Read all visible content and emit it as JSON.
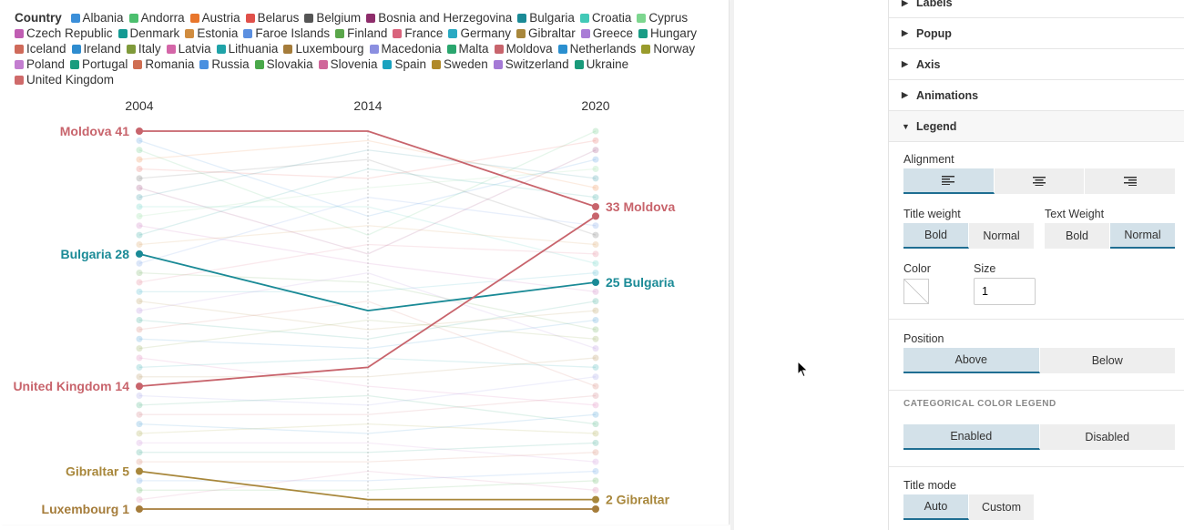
{
  "legend": {
    "title": "Country",
    "items": [
      {
        "name": "Albania",
        "color": "#3b8fd9"
      },
      {
        "name": "Andorra",
        "color": "#4cbf6e"
      },
      {
        "name": "Austria",
        "color": "#e8762c"
      },
      {
        "name": "Belarus",
        "color": "#e0504a"
      },
      {
        "name": "Belgium",
        "color": "#555555"
      },
      {
        "name": "Bosnia and Herzegovina",
        "color": "#8e2d6b"
      },
      {
        "name": "Bulgaria",
        "color": "#1a8a96"
      },
      {
        "name": "Croatia",
        "color": "#42c9b7"
      },
      {
        "name": "Cyprus",
        "color": "#7dd68f"
      },
      {
        "name": "Czech Republic",
        "color": "#c05eb3"
      },
      {
        "name": "Denmark",
        "color": "#149a93"
      },
      {
        "name": "Estonia",
        "color": "#d08c3f"
      },
      {
        "name": "Faroe Islands",
        "color": "#5b8fe0"
      },
      {
        "name": "Finland",
        "color": "#5aa64a"
      },
      {
        "name": "France",
        "color": "#d9637c"
      },
      {
        "name": "Germany",
        "color": "#29a9c2"
      },
      {
        "name": "Gibraltar",
        "color": "#a8873b"
      },
      {
        "name": "Greece",
        "color": "#a97dd6"
      },
      {
        "name": "Hungary",
        "color": "#199c85"
      },
      {
        "name": "Iceland",
        "color": "#cf6a5a"
      },
      {
        "name": "Ireland",
        "color": "#2e8ccf"
      },
      {
        "name": "Italy",
        "color": "#7f9a3a"
      },
      {
        "name": "Latvia",
        "color": "#d466a8"
      },
      {
        "name": "Lithuania",
        "color": "#1fa3a8"
      },
      {
        "name": "Luxembourg",
        "color": "#a57c3a"
      },
      {
        "name": "Macedonia",
        "color": "#8b8fe0"
      },
      {
        "name": "Malta",
        "color": "#2aa66e"
      },
      {
        "name": "Moldova",
        "color": "#c8646c"
      },
      {
        "name": "Netherlands",
        "color": "#2a8fcf"
      },
      {
        "name": "Norway",
        "color": "#999b2c"
      },
      {
        "name": "Poland",
        "color": "#c37ed0"
      },
      {
        "name": "Portugal",
        "color": "#1a9c7e"
      },
      {
        "name": "Romania",
        "color": "#cf6e52"
      },
      {
        "name": "Russia",
        "color": "#4a90e0"
      },
      {
        "name": "Slovakia",
        "color": "#4aa84a"
      },
      {
        "name": "Slovenia",
        "color": "#d0679a"
      },
      {
        "name": "Spain",
        "color": "#1aa2bf"
      },
      {
        "name": "Sweden",
        "color": "#b08a2a"
      },
      {
        "name": "Switzerland",
        "color": "#a57ad6"
      },
      {
        "name": "Ukraine",
        "color": "#1a9a7a"
      },
      {
        "name": "United Kingdom",
        "color": "#cf6a6a"
      }
    ]
  },
  "chart_data": {
    "type": "line",
    "subtype": "slope",
    "x": [
      "2004",
      "2014",
      "2020"
    ],
    "y_direction": "rank, higher values at top",
    "ylim": [
      0,
      42
    ],
    "highlighted_series": [
      {
        "name": "Moldova",
        "color": "#c8646c",
        "values": [
          41,
          41,
          33
        ]
      },
      {
        "name": "Bulgaria",
        "color": "#1a8a96",
        "values": [
          28,
          22,
          25
        ]
      },
      {
        "name": "United Kingdom",
        "color": "#c8646c",
        "values": [
          14,
          16,
          32
        ]
      },
      {
        "name": "Gibraltar",
        "color": "#a8873b",
        "values": [
          5,
          2,
          2
        ]
      },
      {
        "name": "Luxembourg",
        "color": "#a57c3a",
        "values": [
          1,
          1,
          1
        ]
      }
    ],
    "start_labels": [
      {
        "text": "Moldova 41",
        "value": 41,
        "color": "#c8646c"
      },
      {
        "text": "Bulgaria 28",
        "value": 28,
        "color": "#1a8a96"
      },
      {
        "text": "United Kingdom 14",
        "value": 14,
        "color": "#c8646c"
      },
      {
        "text": "Gibraltar 5",
        "value": 5,
        "color": "#a8873b"
      },
      {
        "text": "Luxembourg 1",
        "value": 1,
        "color": "#a57c3a"
      }
    ],
    "end_labels": [
      {
        "text": "33 Moldova",
        "value": 33,
        "color": "#c8646c"
      },
      {
        "text": "25 Bulgaria",
        "value": 25,
        "color": "#1a8a96"
      },
      {
        "text": "2 Gibraltar",
        "value": 2,
        "color": "#a8873b"
      }
    ],
    "background_series_count": 36,
    "faded_pairs": [
      [
        40,
        32,
        38
      ],
      [
        39,
        30,
        41
      ],
      [
        38,
        40,
        35
      ],
      [
        37,
        36,
        40
      ],
      [
        36,
        38,
        30
      ],
      [
        35,
        28,
        39
      ],
      [
        34,
        39,
        36
      ],
      [
        33,
        33,
        27
      ],
      [
        32,
        35,
        37
      ],
      [
        31,
        27,
        24
      ],
      [
        30,
        37,
        34
      ],
      [
        29,
        31,
        29
      ],
      [
        27,
        34,
        31
      ],
      [
        26,
        25,
        20
      ],
      [
        25,
        29,
        28
      ],
      [
        24,
        24,
        26
      ],
      [
        23,
        20,
        22
      ],
      [
        22,
        26,
        18
      ],
      [
        21,
        19,
        23
      ],
      [
        20,
        23,
        14
      ],
      [
        19,
        18,
        21
      ],
      [
        18,
        21,
        19
      ],
      [
        17,
        14,
        12
      ],
      [
        16,
        17,
        16
      ],
      [
        15,
        15,
        17
      ],
      [
        13,
        12,
        15
      ],
      [
        12,
        13,
        10
      ],
      [
        11,
        11,
        13
      ],
      [
        10,
        9,
        11
      ],
      [
        9,
        10,
        9
      ],
      [
        8,
        8,
        6
      ],
      [
        7,
        7,
        8
      ],
      [
        6,
        6,
        7
      ],
      [
        4,
        4,
        5
      ],
      [
        3,
        3,
        4
      ],
      [
        2,
        5,
        3
      ]
    ]
  },
  "settings": {
    "sections": [
      "Labels",
      "Popup",
      "Axis",
      "Animations",
      "Legend"
    ],
    "alignment_label": "Alignment",
    "title_weight_label": "Title weight",
    "title_weight_options": [
      "Bold",
      "Normal"
    ],
    "text_weight_label": "Text Weight",
    "text_weight_options": [
      "Bold",
      "Normal"
    ],
    "color_label": "Color",
    "size_label": "Size",
    "size_value": "1",
    "position_label": "Position",
    "position_options": [
      "Above",
      "Below"
    ],
    "categorical_label": "CATEGORICAL COLOR LEGEND",
    "categorical_options": [
      "Enabled",
      "Disabled"
    ],
    "title_mode_label": "Title mode",
    "title_mode_options": [
      "Auto",
      "Custom"
    ]
  }
}
